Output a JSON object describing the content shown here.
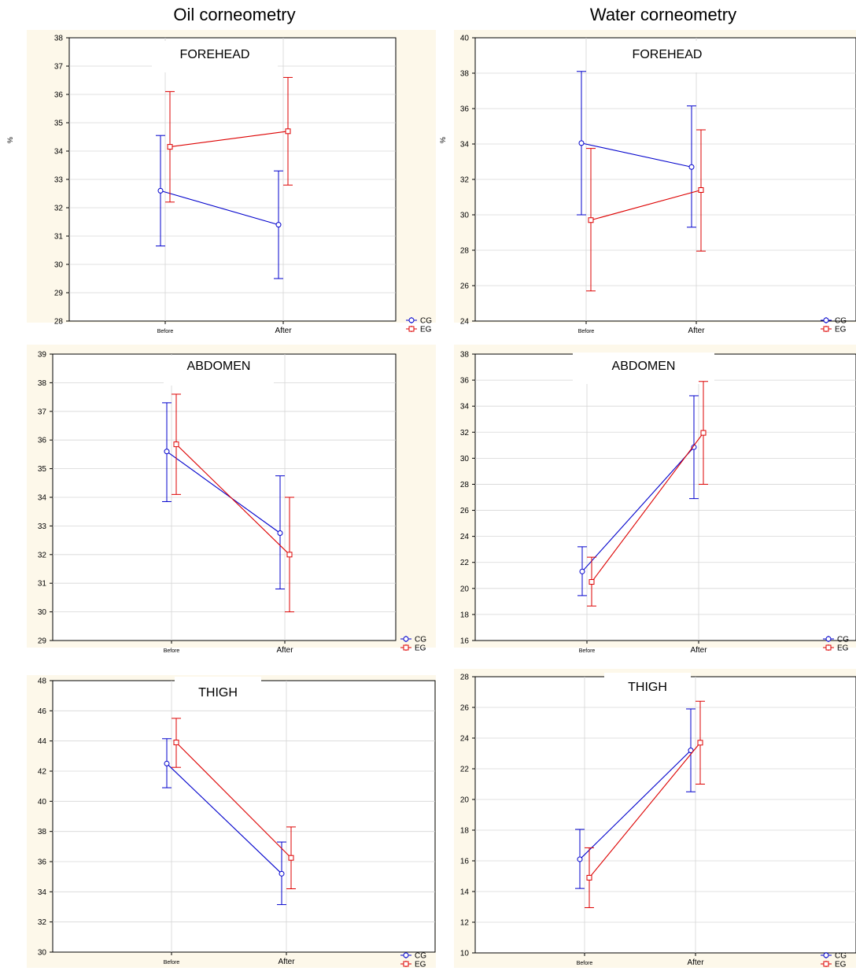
{
  "columns": [
    "Oil corneometry",
    "Water corneometry"
  ],
  "categories": [
    "Before",
    "After"
  ],
  "legend": [
    "CG",
    "EG"
  ],
  "colors": {
    "CG": "#0000cc",
    "EG": "#dd0000",
    "panel_bg": "#fdf8ea",
    "grid": "#d6d6d6"
  },
  "chart_data": [
    {
      "type": "line",
      "column": "Oil corneometry",
      "title": "FOREHEAD",
      "ylabel": "%",
      "ylim": [
        28,
        38
      ],
      "yticks": [
        28,
        29,
        30,
        31,
        32,
        33,
        34,
        35,
        36,
        37,
        38
      ],
      "categories": [
        "Before",
        "After"
      ],
      "series": [
        {
          "name": "CG",
          "values": [
            32.6,
            31.4
          ],
          "lower": [
            30.65,
            29.5
          ],
          "upper": [
            34.55,
            33.3
          ]
        },
        {
          "name": "EG",
          "values": [
            34.15,
            34.7
          ],
          "lower": [
            32.2,
            32.8
          ],
          "upper": [
            36.1,
            36.6
          ]
        }
      ]
    },
    {
      "type": "line",
      "column": "Water corneometry",
      "title": "FOREHEAD",
      "ylabel": "%",
      "ylim": [
        24,
        40
      ],
      "yticks": [
        24,
        26,
        28,
        30,
        32,
        34,
        36,
        38,
        40
      ],
      "categories": [
        "Before",
        "After"
      ],
      "series": [
        {
          "name": "CG",
          "values": [
            34.05,
            32.7
          ],
          "lower": [
            30.0,
            29.3
          ],
          "upper": [
            38.1,
            36.15
          ]
        },
        {
          "name": "EG",
          "values": [
            29.7,
            31.4
          ],
          "lower": [
            25.7,
            27.95
          ],
          "upper": [
            33.75,
            34.8
          ]
        }
      ]
    },
    {
      "type": "line",
      "column": "Oil corneometry",
      "title": "ABDOMEN",
      "ylabel": "",
      "ylim": [
        29,
        39
      ],
      "yticks": [
        29,
        30,
        31,
        32,
        33,
        34,
        35,
        36,
        37,
        38,
        39
      ],
      "categories": [
        "Before",
        "After"
      ],
      "series": [
        {
          "name": "CG",
          "values": [
            35.6,
            32.75
          ],
          "lower": [
            33.85,
            30.8
          ],
          "upper": [
            37.3,
            34.75
          ]
        },
        {
          "name": "EG",
          "values": [
            35.85,
            32.0
          ],
          "lower": [
            34.1,
            30.0
          ],
          "upper": [
            37.6,
            34.0
          ]
        }
      ]
    },
    {
      "type": "line",
      "column": "Water corneometry",
      "title": "ABDOMEN",
      "ylabel": "",
      "ylim": [
        16,
        38
      ],
      "yticks": [
        16,
        18,
        20,
        22,
        24,
        26,
        28,
        30,
        32,
        34,
        36,
        38
      ],
      "categories": [
        "Before",
        "After"
      ],
      "series": [
        {
          "name": "CG",
          "values": [
            21.3,
            30.85
          ],
          "lower": [
            19.45,
            26.9
          ],
          "upper": [
            23.2,
            34.8
          ]
        },
        {
          "name": "EG",
          "values": [
            20.5,
            31.95
          ],
          "lower": [
            18.65,
            28.0
          ],
          "upper": [
            22.4,
            35.9
          ]
        }
      ]
    },
    {
      "type": "line",
      "column": "Oil corneometry",
      "title": "THIGH",
      "ylabel": "",
      "ylim": [
        30,
        48
      ],
      "yticks": [
        30,
        32,
        34,
        36,
        38,
        40,
        42,
        44,
        46,
        48
      ],
      "categories": [
        "Before",
        "After"
      ],
      "series": [
        {
          "name": "CG",
          "values": [
            42.5,
            35.2
          ],
          "lower": [
            40.9,
            33.15
          ],
          "upper": [
            44.15,
            37.3
          ]
        },
        {
          "name": "EG",
          "values": [
            43.9,
            36.25
          ],
          "lower": [
            42.25,
            34.2
          ],
          "upper": [
            45.5,
            38.3
          ]
        }
      ]
    },
    {
      "type": "line",
      "column": "Water corneometry",
      "title": "THIGH",
      "ylabel": "",
      "ylim": [
        10,
        28
      ],
      "yticks": [
        10,
        12,
        14,
        16,
        18,
        20,
        22,
        24,
        26,
        28
      ],
      "categories": [
        "Before",
        "After"
      ],
      "series": [
        {
          "name": "CG",
          "values": [
            16.1,
            23.2
          ],
          "lower": [
            14.2,
            20.5
          ],
          "upper": [
            18.05,
            25.9
          ]
        },
        {
          "name": "EG",
          "values": [
            14.9,
            23.7
          ],
          "lower": [
            12.95,
            21.0
          ],
          "upper": [
            16.85,
            26.4
          ]
        }
      ]
    }
  ]
}
